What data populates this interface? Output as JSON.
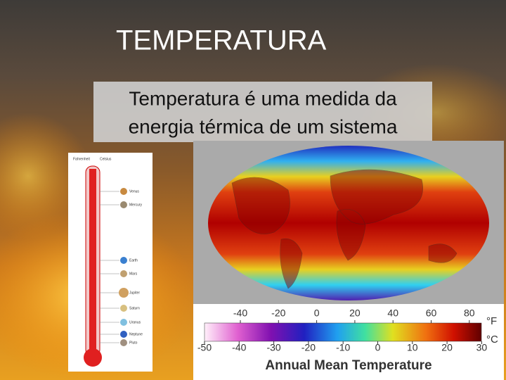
{
  "title": "TEMPERATURA",
  "subtitle": {
    "lines": [
      "Temperatura é uma medida da",
      "energia térmica de um sistema"
    ]
  },
  "thermometer": {
    "header": [
      "Fahrenheit",
      "Celsius"
    ],
    "planets": [
      "Venus",
      "Mercury",
      "Earth",
      "Mars",
      "Jupiter",
      "Saturn",
      "Uranus",
      "Neptune",
      "Pluto"
    ]
  },
  "map": {
    "colorbar": {
      "fahrenheit_ticks": [
        -40,
        -20,
        0,
        20,
        40,
        60,
        80
      ],
      "fahrenheit_unit": "°F",
      "celsius_ticks": [
        -50,
        -40,
        -30,
        -20,
        -10,
        0,
        10,
        20,
        30
      ],
      "celsius_unit": "°C",
      "title": "Annual Mean Temperature"
    }
  }
}
